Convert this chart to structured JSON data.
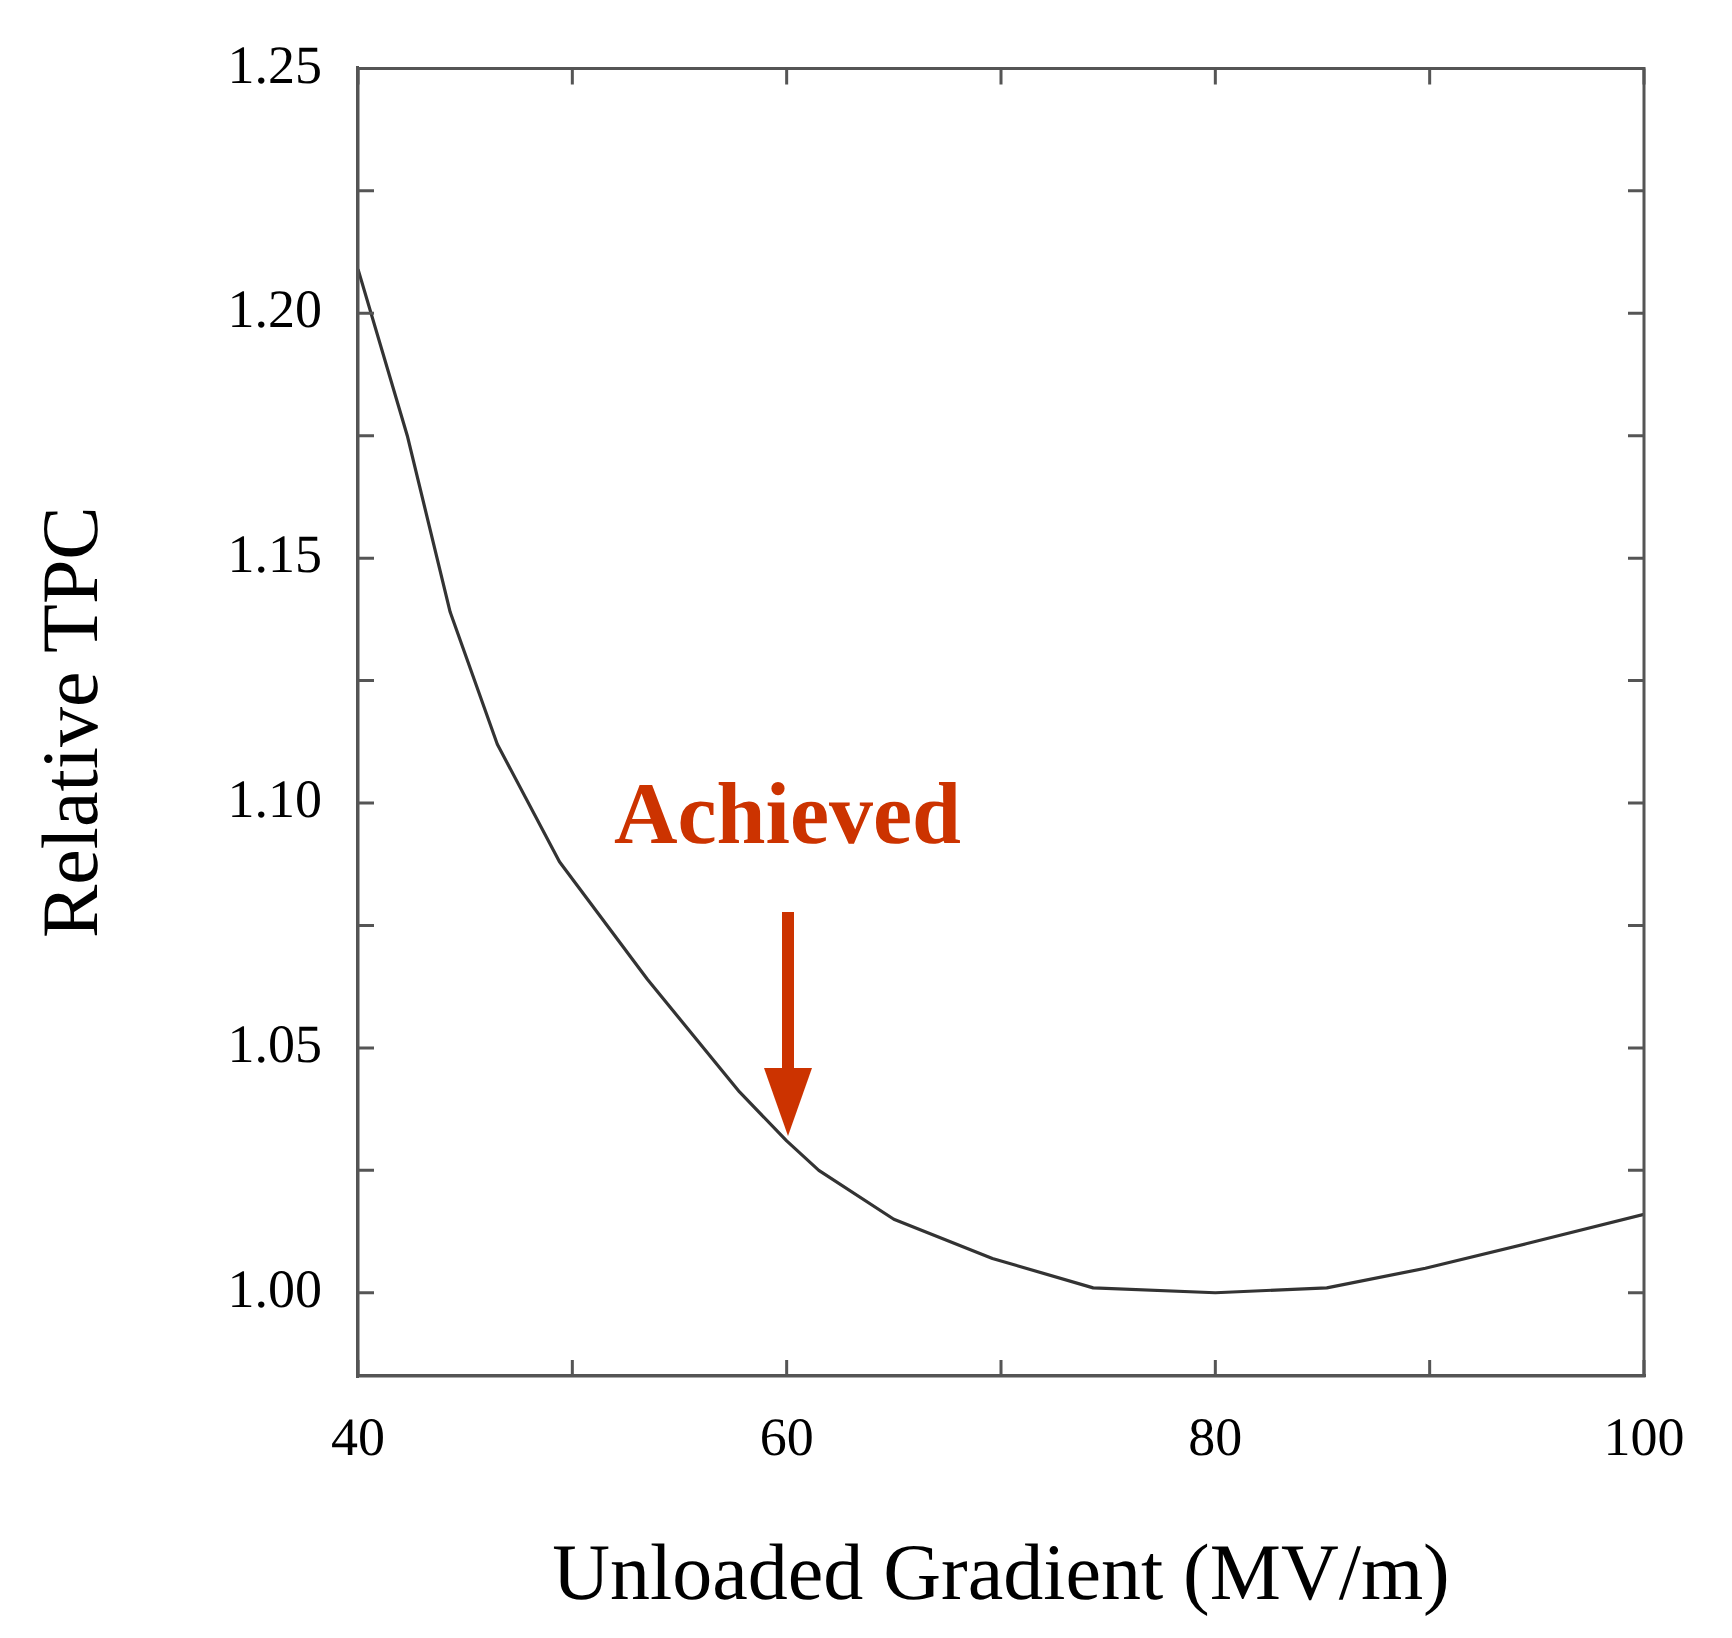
{
  "chart_data": {
    "type": "line",
    "xlabel": "Unloaded Gradient (MV/m)",
    "ylabel": "Relative TPC",
    "series": [
      {
        "color": "#333333",
        "x": [
          40,
          42.3,
          44.3,
          46.5,
          49.4,
          53.5,
          57.8,
          60,
          61.5,
          65,
          69.6,
          74.3,
          80,
          85.2,
          89.8,
          94.5,
          100
        ],
        "values": [
          1.209,
          1.175,
          1.139,
          1.112,
          1.088,
          1.064,
          1.041,
          1.031,
          1.025,
          1.015,
          1.007,
          1.001,
          1.0,
          1.001,
          1.005,
          1.01,
          1.016
        ]
      }
    ],
    "xlim": [
      40,
      100
    ],
    "xticks": [
      40,
      {
        "value": 50,
        "label": null
      },
      60,
      {
        "value": 70,
        "label": null
      },
      80,
      {
        "value": 90,
        "label": null
      },
      100
    ],
    "ylim": [
      0.983,
      1.25
    ],
    "yticks": [
      {
        "value": 1.0,
        "label": "1.00"
      },
      {
        "value": 1.025,
        "label": null
      },
      {
        "value": 1.05,
        "label": "1.05"
      },
      {
        "value": 1.075,
        "label": null
      },
      {
        "value": 1.1,
        "label": "1.10"
      },
      {
        "value": 1.125,
        "label": null
      },
      {
        "value": 1.15,
        "label": "1.15"
      },
      {
        "value": 1.175,
        "label": null
      },
      {
        "value": 1.2,
        "label": "1.20"
      },
      {
        "value": 1.225,
        "label": null
      },
      {
        "value": 1.25,
        "label": "1.25"
      }
    ],
    "annotations": [
      "Achieved"
    ],
    "grid": false,
    "legend": false,
    "marker": "none",
    "line_style": "solid"
  }
}
